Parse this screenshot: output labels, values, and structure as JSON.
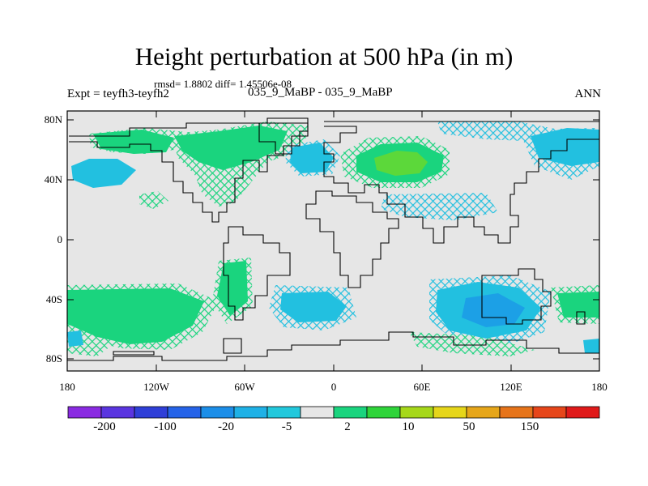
{
  "title": "Height perturbation at 500 hPa (in m)",
  "stats": "rmsd= 1.8802 diff= 1.45506e-08",
  "left_label": "Expt = teyfh3-teyfh2",
  "center_label": "035_9_MaBP - 035_9_MaBP",
  "right_label": "ANN",
  "axes": {
    "y_ticks": [
      "80N",
      "40N",
      "0",
      "40S",
      "80S"
    ],
    "x_ticks": [
      "180",
      "120W",
      "60W",
      "0",
      "60E",
      "120E",
      "180"
    ]
  },
  "colorbar": {
    "colors": [
      "#8a2be2",
      "#5a35e0",
      "#2f3fd8",
      "#2563e8",
      "#1c8ee8",
      "#1fb1e6",
      "#22c8dc",
      "#e6e6e6",
      "#1ad47e",
      "#2fd43a",
      "#a6d81a",
      "#e6d61a",
      "#e6a61a",
      "#e6741a",
      "#e6461a",
      "#e01a1a"
    ],
    "labels": [
      "-200",
      "-100",
      "-20",
      "-5",
      "2",
      "10",
      "50",
      "150"
    ]
  },
  "fill_colors": {
    "background": "#e6e6e6",
    "green": "#1ad47e",
    "bright_green": "#5cd83a",
    "cyan": "#22c0e0",
    "blue": "#1ca0e6",
    "coast": "#000000"
  }
}
